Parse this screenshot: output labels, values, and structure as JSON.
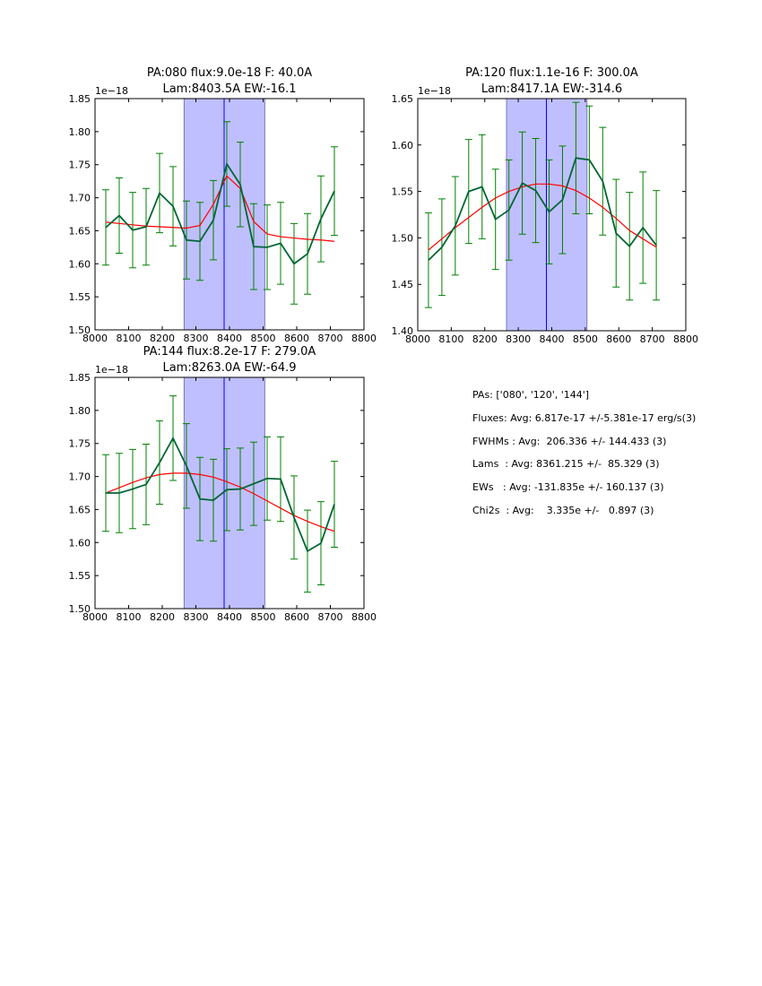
{
  "chart_data": [
    {
      "type": "line",
      "title": [
        "PA:080 flux:9.0e-18 F: 40.0A",
        "Lam:8403.5A EW:-16.1"
      ],
      "offset_label": "1e−18",
      "xlim": [
        8000,
        8800
      ],
      "ylim": [
        1.5,
        1.85
      ],
      "xticks": [
        8000,
        8100,
        8200,
        8300,
        8400,
        8500,
        8600,
        8700,
        8800
      ],
      "yticks": [
        "1.50",
        "1.55",
        "1.60",
        "1.65",
        "1.70",
        "1.75",
        "1.80",
        "1.85"
      ],
      "x": [
        8032,
        8072,
        8112,
        8152,
        8192,
        8232,
        8272,
        8312,
        8352,
        8392,
        8432,
        8472,
        8512,
        8552,
        8592,
        8632,
        8672,
        8712
      ],
      "flux": [
        1.655,
        1.673,
        1.651,
        1.656,
        1.707,
        1.687,
        1.636,
        1.634,
        1.666,
        1.751,
        1.72,
        1.626,
        1.625,
        1.631,
        1.6,
        1.615,
        1.668,
        1.71
      ],
      "err": [
        0.057,
        0.057,
        0.057,
        0.058,
        0.06,
        0.06,
        0.059,
        0.059,
        0.06,
        0.064,
        0.064,
        0.065,
        0.064,
        0.062,
        0.061,
        0.061,
        0.065,
        0.067
      ],
      "fit": [
        1.663,
        1.661,
        1.659,
        1.657,
        1.656,
        1.655,
        1.654,
        1.658,
        1.69,
        1.733,
        1.714,
        1.664,
        1.645,
        1.641,
        1.639,
        1.637,
        1.636,
        1.634
      ],
      "band": [
        8265,
        8505
      ],
      "line_center": 8384
    },
    {
      "type": "line",
      "title": [
        "PA:120 flux:1.1e-16 F: 300.0A",
        "Lam:8417.1A EW:-314.6"
      ],
      "offset_label": "1e−18",
      "xlim": [
        8000,
        8800
      ],
      "ylim": [
        1.4,
        1.65
      ],
      "xticks": [
        8000,
        8100,
        8200,
        8300,
        8400,
        8500,
        8600,
        8700,
        8800
      ],
      "yticks": [
        "1.40",
        "1.45",
        "1.50",
        "1.55",
        "1.60",
        "1.65"
      ],
      "x": [
        8032,
        8072,
        8112,
        8152,
        8192,
        8232,
        8272,
        8312,
        8352,
        8392,
        8432,
        8472,
        8512,
        8552,
        8592,
        8632,
        8672,
        8712
      ],
      "flux": [
        1.476,
        1.49,
        1.513,
        1.55,
        1.555,
        1.52,
        1.53,
        1.559,
        1.551,
        1.528,
        1.541,
        1.586,
        1.584,
        1.561,
        1.505,
        1.491,
        1.511,
        1.492
      ],
      "err": [
        0.051,
        0.052,
        0.053,
        0.056,
        0.056,
        0.054,
        0.054,
        0.055,
        0.056,
        0.056,
        0.058,
        0.06,
        0.058,
        0.058,
        0.058,
        0.058,
        0.06,
        0.059
      ],
      "fit": [
        1.487,
        1.499,
        1.511,
        1.522,
        1.533,
        1.543,
        1.55,
        1.555,
        1.558,
        1.558,
        1.556,
        1.551,
        1.543,
        1.533,
        1.521,
        1.508,
        1.499,
        1.49
      ],
      "band": [
        8265,
        8505
      ],
      "line_center": 8384
    },
    {
      "type": "line",
      "title": [
        "PA:144 flux:8.2e-17 F: 279.0A",
        "Lam:8263.0A EW:-64.9"
      ],
      "offset_label": "1e−18",
      "xlim": [
        8000,
        8800
      ],
      "ylim": [
        1.5,
        1.85
      ],
      "xticks": [
        8000,
        8100,
        8200,
        8300,
        8400,
        8500,
        8600,
        8700,
        8800
      ],
      "yticks": [
        "1.50",
        "1.55",
        "1.60",
        "1.65",
        "1.70",
        "1.75",
        "1.80",
        "1.85"
      ],
      "x": [
        8032,
        8072,
        8112,
        8152,
        8192,
        8232,
        8272,
        8312,
        8352,
        8392,
        8432,
        8472,
        8512,
        8552,
        8592,
        8632,
        8672,
        8712
      ],
      "flux": [
        1.675,
        1.675,
        1.681,
        1.688,
        1.721,
        1.758,
        1.716,
        1.666,
        1.664,
        1.68,
        1.681,
        1.689,
        1.697,
        1.696,
        1.638,
        1.587,
        1.599,
        1.658
      ],
      "err": [
        0.058,
        0.06,
        0.06,
        0.061,
        0.063,
        0.064,
        0.064,
        0.063,
        0.062,
        0.062,
        0.062,
        0.063,
        0.063,
        0.064,
        0.063,
        0.062,
        0.063,
        0.065
      ],
      "fit": [
        1.675,
        1.683,
        1.691,
        1.698,
        1.703,
        1.705,
        1.705,
        1.703,
        1.699,
        1.692,
        1.684,
        1.674,
        1.663,
        1.652,
        1.641,
        1.632,
        1.624,
        1.617
      ],
      "band": [
        8265,
        8505
      ],
      "line_center": 8384
    }
  ],
  "stats": [
    "PAs: ['080', '120', '144']",
    "Fluxes: Avg: 6.817e-17 +/-5.381e-17 erg/s(3)",
    "FWHMs : Avg:  206.336 +/- 144.433 (3)",
    "Lams  : Avg: 8361.215 +/-  85.329 (3)",
    "EWs   : Avg: -131.835e +/- 160.137 (3)",
    "Chi2s  : Avg:    3.335e +/-   0.897 (3)"
  ],
  "colors": {
    "data": "#006633",
    "errbar": "#008000",
    "fit": "#ff0000",
    "band": "#bfbfff",
    "center": "#0000ff"
  }
}
